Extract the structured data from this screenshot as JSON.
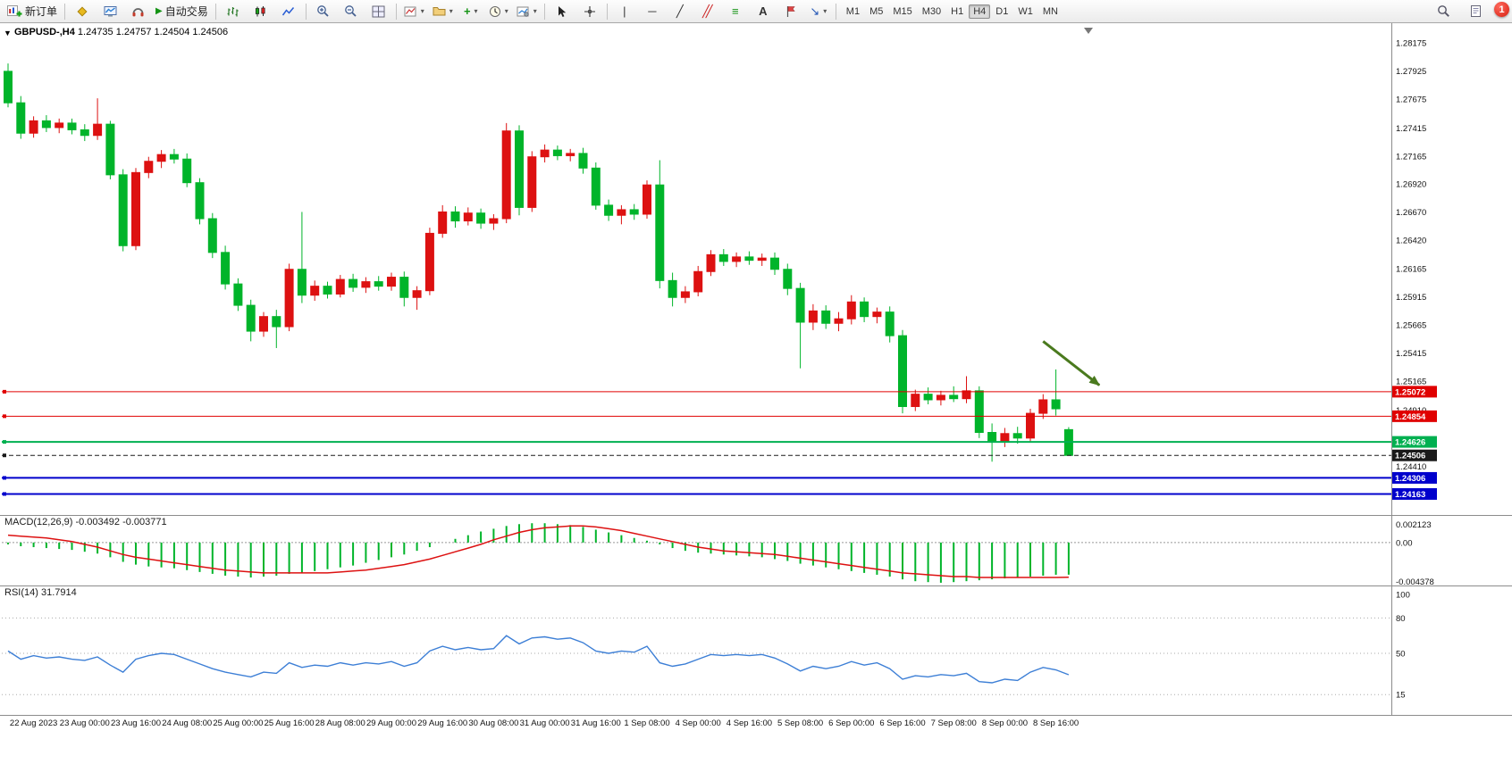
{
  "toolbar": {
    "new_order_label": "新订单",
    "auto_trading_label": "自动交易",
    "timeframes": [
      "M1",
      "M5",
      "M15",
      "M30",
      "H1",
      "H4",
      "D1",
      "W1",
      "MN"
    ],
    "active_timeframe": "H4",
    "notification_badge": "1"
  },
  "icons": {
    "triangle_down": "▼",
    "caret": "▾",
    "play": "▶",
    "plus": "+",
    "minus": "−",
    "diamond": "◆",
    "vline": "|",
    "hline": "─",
    "trendline": "╱",
    "channel": "╱╱",
    "fibo": "≡",
    "text_tool": "A",
    "arrows": "↘",
    "crosshair": "+"
  },
  "chart": {
    "symbol_period": "GBPUSD-,H4",
    "ohlc": "1.24735 1.24757 1.24504 1.24506"
  },
  "indicators": {
    "macd": {
      "label": "MACD(12,26,9) -0.003492 -0.003771"
    },
    "rsi": {
      "label": "RSI(14) 31.7914"
    }
  },
  "chart_data": {
    "type": "candlestick",
    "symbol": "GBPUSD-",
    "period": "H4",
    "ohlc_current": {
      "open": 1.24735,
      "high": 1.24757,
      "low": 1.24504,
      "close": 1.24506
    },
    "bars_per_label": 4,
    "first_label_bar": 2,
    "x_labels": [
      "22 Aug 2023",
      "23 Aug 00:00",
      "23 Aug 16:00",
      "24 Aug 08:00",
      "25 Aug 00:00",
      "25 Aug 16:00",
      "28 Aug 08:00",
      "29 Aug 00:00",
      "29 Aug 16:00",
      "30 Aug 08:00",
      "31 Aug 00:00",
      "31 Aug 16:00",
      "1 Sep 08:00",
      "4 Sep 00:00",
      "4 Sep 16:00",
      "5 Sep 08:00",
      "6 Sep 00:00",
      "6 Sep 16:00",
      "7 Sep 08:00",
      "8 Sep 00:00",
      "8 Sep 16:00"
    ],
    "price_axis": {
      "ylim": [
        1.24,
        1.283
      ],
      "ticks": [
        "1.28175",
        "1.27925",
        "1.27675",
        "1.27415",
        "1.27165",
        "1.26920",
        "1.26670",
        "1.26420",
        "1.26165",
        "1.25915",
        "1.25665",
        "1.25415",
        "1.25165",
        "1.24910",
        "1.24410"
      ]
    },
    "colors": {
      "bull": "#dd1111",
      "bear": "#00b42a",
      "macd_hist": "#00b42a",
      "macd_signal": "#dd1111",
      "rsi": "#3d7fd6",
      "current_price": "#1a1a1a"
    },
    "candles": [
      [
        1.2792,
        1.2799,
        1.276,
        1.2764
      ],
      [
        1.2764,
        1.277,
        1.2732,
        1.2737
      ],
      [
        1.2737,
        1.2752,
        1.2733,
        1.2748
      ],
      [
        1.2748,
        1.2753,
        1.2738,
        1.2742
      ],
      [
        1.2742,
        1.275,
        1.2737,
        1.2746
      ],
      [
        1.2746,
        1.275,
        1.2736,
        1.274
      ],
      [
        1.274,
        1.2745,
        1.273,
        1.2735
      ],
      [
        1.2735,
        1.2768,
        1.2731,
        1.2745
      ],
      [
        1.2745,
        1.2748,
        1.2696,
        1.27
      ],
      [
        1.27,
        1.2705,
        1.2632,
        1.2637
      ],
      [
        1.2637,
        1.2706,
        1.2633,
        1.2702
      ],
      [
        1.2702,
        1.2716,
        1.2697,
        1.2712
      ],
      [
        1.2712,
        1.2722,
        1.2706,
        1.2718
      ],
      [
        1.2718,
        1.2723,
        1.271,
        1.2714
      ],
      [
        1.2714,
        1.2719,
        1.2689,
        1.2693
      ],
      [
        1.2693,
        1.2697,
        1.2656,
        1.2661
      ],
      [
        1.2661,
        1.2666,
        1.2626,
        1.2631
      ],
      [
        1.2631,
        1.2637,
        1.2598,
        1.2603
      ],
      [
        1.2603,
        1.2608,
        1.2579,
        1.2584
      ],
      [
        1.2584,
        1.2589,
        1.2552,
        1.2561
      ],
      [
        1.2561,
        1.2578,
        1.2556,
        1.2574
      ],
      [
        1.2574,
        1.258,
        1.2546,
        1.2565
      ],
      [
        1.2565,
        1.2621,
        1.2561,
        1.2616
      ],
      [
        1.2616,
        1.2667,
        1.2586,
        1.2593
      ],
      [
        1.2593,
        1.2606,
        1.2588,
        1.2601
      ],
      [
        1.2601,
        1.2605,
        1.259,
        1.2594
      ],
      [
        1.2594,
        1.2611,
        1.2591,
        1.2607
      ],
      [
        1.2607,
        1.2612,
        1.2596,
        1.26
      ],
      [
        1.26,
        1.2609,
        1.2595,
        1.2605
      ],
      [
        1.2605,
        1.261,
        1.2597,
        1.2601
      ],
      [
        1.2601,
        1.2613,
        1.2597,
        1.2609
      ],
      [
        1.2609,
        1.2614,
        1.2583,
        1.2591
      ],
      [
        1.2591,
        1.2601,
        1.258,
        1.2597
      ],
      [
        1.2597,
        1.2653,
        1.2593,
        1.2648
      ],
      [
        1.2648,
        1.2673,
        1.2644,
        1.2667
      ],
      [
        1.2667,
        1.2672,
        1.2653,
        1.2659
      ],
      [
        1.2659,
        1.2671,
        1.2655,
        1.2666
      ],
      [
        1.2666,
        1.267,
        1.2652,
        1.2657
      ],
      [
        1.2657,
        1.2665,
        1.2651,
        1.2661
      ],
      [
        1.2661,
        1.2746,
        1.2657,
        1.2739
      ],
      [
        1.2739,
        1.2744,
        1.2664,
        1.2671
      ],
      [
        1.2671,
        1.2721,
        1.2667,
        1.2716
      ],
      [
        1.2716,
        1.2727,
        1.2711,
        1.2722
      ],
      [
        1.2722,
        1.2726,
        1.2713,
        1.2717
      ],
      [
        1.2717,
        1.2723,
        1.2712,
        1.2719
      ],
      [
        1.2719,
        1.2724,
        1.2701,
        1.2706
      ],
      [
        1.2706,
        1.2711,
        1.2669,
        1.2673
      ],
      [
        1.2673,
        1.2678,
        1.2659,
        1.2664
      ],
      [
        1.2664,
        1.2673,
        1.2656,
        1.2669
      ],
      [
        1.2669,
        1.2674,
        1.266,
        1.2665
      ],
      [
        1.2665,
        1.2695,
        1.2661,
        1.2691
      ],
      [
        1.2691,
        1.2713,
        1.2599,
        1.2606
      ],
      [
        1.2606,
        1.2613,
        1.2583,
        1.2591
      ],
      [
        1.2591,
        1.2601,
        1.2586,
        1.2596
      ],
      [
        1.2596,
        1.2619,
        1.2592,
        1.2614
      ],
      [
        1.2614,
        1.2633,
        1.261,
        1.2629
      ],
      [
        1.2629,
        1.2634,
        1.2619,
        1.2623
      ],
      [
        1.2623,
        1.2631,
        1.2618,
        1.2627
      ],
      [
        1.2627,
        1.2632,
        1.262,
        1.2624
      ],
      [
        1.2624,
        1.263,
        1.2619,
        1.2626
      ],
      [
        1.2626,
        1.2631,
        1.2611,
        1.2616
      ],
      [
        1.2616,
        1.2621,
        1.2593,
        1.2599
      ],
      [
        1.2599,
        1.2604,
        1.2528,
        1.2569
      ],
      [
        1.2569,
        1.2585,
        1.2562,
        1.2579
      ],
      [
        1.2579,
        1.2584,
        1.2563,
        1.2568
      ],
      [
        1.2568,
        1.2578,
        1.2561,
        1.2572
      ],
      [
        1.2572,
        1.2593,
        1.2567,
        1.2587
      ],
      [
        1.2587,
        1.2591,
        1.2569,
        1.2574
      ],
      [
        1.2574,
        1.2582,
        1.2568,
        1.2578
      ],
      [
        1.2578,
        1.2583,
        1.2551,
        1.2557
      ],
      [
        1.2557,
        1.2562,
        1.2488,
        1.2494
      ],
      [
        1.2494,
        1.2509,
        1.249,
        1.2505
      ],
      [
        1.2505,
        1.2511,
        1.2496,
        1.25
      ],
      [
        1.25,
        1.2508,
        1.2495,
        1.2504
      ],
      [
        1.2504,
        1.2512,
        1.2498,
        1.2501
      ],
      [
        1.2501,
        1.2521,
        1.2497,
        1.2508
      ],
      [
        1.2508,
        1.2512,
        1.2466,
        1.2471
      ],
      [
        1.2471,
        1.2479,
        1.2445,
        1.2463
      ],
      [
        1.2463,
        1.2475,
        1.2458,
        1.247
      ],
      [
        1.247,
        1.2476,
        1.2461,
        1.2466
      ],
      [
        1.2466,
        1.2492,
        1.2462,
        1.2488
      ],
      [
        1.2488,
        1.2505,
        1.2483,
        1.25
      ],
      [
        1.25,
        1.2527,
        1.2486,
        1.2492
      ],
      [
        1.24735,
        1.24757,
        1.24504,
        1.24506
      ]
    ],
    "hlines": [
      {
        "price": 1.25072,
        "label": "1.25072",
        "color": "#e00000",
        "width": 1,
        "style": "solid"
      },
      {
        "price": 1.24854,
        "label": "1.24854",
        "color": "#e00000",
        "width": 1,
        "style": "solid"
      },
      {
        "price": 1.24626,
        "label": "1.24626",
        "color": "#00b050",
        "width": 2,
        "style": "solid"
      },
      {
        "price": 1.24506,
        "label": "1.24506",
        "color": "#1a1a1a",
        "width": 1,
        "style": "dash",
        "current": true
      },
      {
        "price": 1.24306,
        "label": "1.24306",
        "color": "#0000cc",
        "width": 2,
        "style": "solid"
      },
      {
        "price": 1.24163,
        "label": "1.24163",
        "color": "#0000cc",
        "width": 2,
        "style": "solid"
      }
    ],
    "arrow": {
      "from_bar": 81.0,
      "from_price": 1.2552,
      "to_bar": 85.4,
      "to_price": 1.2513,
      "color": "#4a7a1e",
      "width": 3
    },
    "macd": {
      "ylim": [
        -0.004378,
        0.002123
      ],
      "axis_labels": [
        "0.002123",
        "0.00",
        "-0.004378"
      ],
      "values": [
        -0.0002,
        -0.0004,
        -0.0005,
        -0.0006,
        -0.0007,
        -0.0008,
        -0.001,
        -0.0012,
        -0.0016,
        -0.0021,
        -0.0024,
        -0.0026,
        -0.0027,
        -0.0028,
        -0.003,
        -0.0032,
        -0.0034,
        -0.0036,
        -0.0037,
        -0.0038,
        -0.0037,
        -0.0036,
        -0.0034,
        -0.0033,
        -0.0031,
        -0.0029,
        -0.0027,
        -0.0025,
        -0.0022,
        -0.0019,
        -0.0016,
        -0.0013,
        -0.0009,
        -0.0005,
        0.0,
        0.0004,
        0.0008,
        0.0012,
        0.0015,
        0.0018,
        0.002,
        0.0021,
        0.0021,
        0.002,
        0.0019,
        0.0017,
        0.0014,
        0.0011,
        0.0008,
        0.0005,
        0.0002,
        -0.0002,
        -0.0006,
        -0.0009,
        -0.0011,
        -0.0012,
        -0.0013,
        -0.0014,
        -0.0015,
        -0.0016,
        -0.0018,
        -0.002,
        -0.0023,
        -0.0025,
        -0.0027,
        -0.0029,
        -0.0031,
        -0.0033,
        -0.0035,
        -0.0037,
        -0.004,
        -0.0042,
        -0.0043,
        -0.00437,
        -0.0043,
        -0.0042,
        -0.0041,
        -0.004,
        -0.0039,
        -0.0038,
        -0.0037,
        -0.0036,
        -0.0035,
        -0.003492
      ],
      "signal": [
        0.0008,
        0.0007,
        0.0006,
        0.0005,
        0.0003,
        0.0001,
        -0.0002,
        -0.0005,
        -0.0009,
        -0.0013,
        -0.0016,
        -0.0018,
        -0.002,
        -0.0022,
        -0.0024,
        -0.0026,
        -0.0028,
        -0.003,
        -0.0031,
        -0.0032,
        -0.0033,
        -0.0033,
        -0.0033,
        -0.0033,
        -0.0033,
        -0.0033,
        -0.0032,
        -0.0031,
        -0.003,
        -0.0028,
        -0.0026,
        -0.0024,
        -0.0021,
        -0.0018,
        -0.0014,
        -0.001,
        -0.0006,
        -0.0002,
        0.0003,
        0.0007,
        0.0011,
        0.0014,
        0.0016,
        0.0017,
        0.0018,
        0.0018,
        0.0017,
        0.0015,
        0.0013,
        0.001,
        0.0007,
        0.0004,
        0.0001,
        -0.0002,
        -0.0005,
        -0.0007,
        -0.0009,
        -0.001,
        -0.0011,
        -0.0012,
        -0.0013,
        -0.0015,
        -0.0017,
        -0.0019,
        -0.0021,
        -0.0023,
        -0.0025,
        -0.0027,
        -0.0029,
        -0.0031,
        -0.0033,
        -0.0034,
        -0.0035,
        -0.0036,
        -0.0037,
        -0.0037,
        -0.0038,
        -0.0038,
        -0.0038,
        -0.0038,
        -0.0038,
        -0.0038,
        -0.0038,
        -0.003771
      ]
    },
    "rsi": {
      "ylim": [
        0,
        100
      ],
      "ticks": [
        "100",
        "80",
        "50",
        "15"
      ],
      "levels": [
        80,
        50,
        15
      ],
      "values": [
        52,
        45,
        48,
        46,
        47,
        45,
        44,
        47,
        40,
        34,
        45,
        48,
        50,
        49,
        45,
        41,
        37,
        34,
        32,
        30,
        34,
        33,
        42,
        38,
        40,
        39,
        42,
        40,
        42,
        41,
        43,
        39,
        42,
        52,
        56,
        53,
        55,
        53,
        54,
        65,
        58,
        63,
        64,
        62,
        63,
        59,
        52,
        50,
        52,
        51,
        56,
        42,
        39,
        41,
        45,
        49,
        48,
        49,
        48,
        49,
        46,
        41,
        35,
        39,
        37,
        39,
        43,
        40,
        42,
        37,
        28,
        31,
        30,
        32,
        31,
        33,
        26,
        25,
        28,
        27,
        34,
        38,
        36,
        31.7914
      ]
    }
  }
}
